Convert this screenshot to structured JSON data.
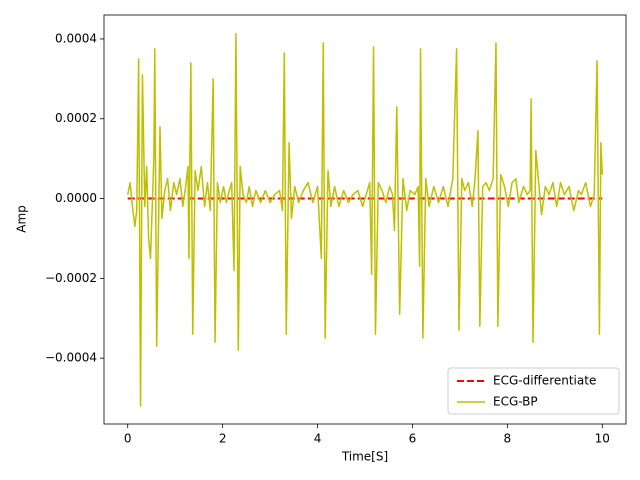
{
  "chart_data": {
    "type": "line",
    "xlabel": "Time[S]",
    "ylabel": "Amp",
    "xlim": [
      -0.5,
      10.5
    ],
    "xticks": [
      0,
      2,
      4,
      6,
      8,
      10
    ],
    "ylim": [
      -0.000565,
      0.00046
    ],
    "yticks": [
      {
        "value": -0.0004,
        "label": "−0.0004"
      },
      {
        "value": -0.0002,
        "label": "−0.0002"
      },
      {
        "value": 0,
        "label": "0.0000"
      },
      {
        "value": 0.0002,
        "label": "0.0002"
      },
      {
        "value": 0.0004,
        "label": "0.0004"
      }
    ],
    "legend": "lower right",
    "series": [
      {
        "name": "ECG-differentiate",
        "color": "#ff0000",
        "style": "dashed",
        "x": [
          0,
          10
        ],
        "values": [
          0,
          0
        ]
      },
      {
        "name": "ECG-BP",
        "color": "#bfbf00",
        "style": "solid",
        "x": [
          0.0,
          0.05,
          0.1,
          0.15,
          0.19,
          0.23,
          0.27,
          0.31,
          0.36,
          0.4,
          0.44,
          0.48,
          0.55,
          0.57,
          0.61,
          0.68,
          0.72,
          0.78,
          0.84,
          0.9,
          0.97,
          1.03,
          1.1,
          1.16,
          1.22,
          1.27,
          1.29,
          1.33,
          1.37,
          1.42,
          1.48,
          1.55,
          1.62,
          1.68,
          1.74,
          1.8,
          1.84,
          1.89,
          1.95,
          2.02,
          2.08,
          2.14,
          2.19,
          2.24,
          2.28,
          2.33,
          2.37,
          2.43,
          2.5,
          2.56,
          2.63,
          2.7,
          2.8,
          2.9,
          3.0,
          3.1,
          3.2,
          3.26,
          3.3,
          3.34,
          3.4,
          3.45,
          3.52,
          3.6,
          3.7,
          3.8,
          3.9,
          4.0,
          4.08,
          4.12,
          4.16,
          4.22,
          4.28,
          4.36,
          4.45,
          4.55,
          4.65,
          4.75,
          4.85,
          4.95,
          5.05,
          5.1,
          5.14,
          5.18,
          5.22,
          5.28,
          5.36,
          5.44,
          5.52,
          5.58,
          5.62,
          5.67,
          5.73,
          5.8,
          5.88,
          5.95,
          6.05,
          6.12,
          6.15,
          6.17,
          6.22,
          6.28,
          6.35,
          6.45,
          6.55,
          6.65,
          6.75,
          6.85,
          6.93,
          6.98,
          7.04,
          7.1,
          7.18,
          7.26,
          7.32,
          7.38,
          7.42,
          7.48,
          7.55,
          7.62,
          7.7,
          7.76,
          7.8,
          7.86,
          7.94,
          8.02,
          8.1,
          8.18,
          8.24,
          8.34,
          8.42,
          8.48,
          8.5,
          8.54,
          8.6,
          8.66,
          8.72,
          8.8,
          8.88,
          8.96,
          9.04,
          9.12,
          9.2,
          9.3,
          9.4,
          9.5,
          9.56,
          9.65,
          9.75,
          9.83,
          9.89,
          9.94,
          9.97,
          10.0
        ],
        "values": [
          1e-05,
          4e-05,
          -2e-05,
          -7e-05,
          -3e-05,
          0.00035,
          -0.00052,
          0.00031,
          -2e-05,
          8e-05,
          -0.0001,
          -0.00015,
          0.0001,
          0.000375,
          -0.00037,
          0.00018,
          -5e-05,
          2e-05,
          5e-05,
          -3e-05,
          4e-05,
          1e-05,
          5e-05,
          -2e-05,
          3e-05,
          8e-05,
          -0.00015,
          0.00034,
          -0.00034,
          7e-05,
          2e-05,
          8e-05,
          -2e-05,
          4e-05,
          -3e-05,
          0.0003,
          -0.00036,
          4e-05,
          -1e-05,
          3e-05,
          -1e-05,
          2e-05,
          4e-05,
          -0.00018,
          0.000413,
          -0.00038,
          8e-05,
          1e-05,
          -1e-05,
          3e-05,
          -2e-05,
          2e-05,
          -1e-05,
          2e-05,
          -1e-05,
          1e-05,
          2e-05,
          -3e-05,
          0.000365,
          -0.00034,
          0.00014,
          -5e-05,
          3e-05,
          -1e-05,
          2e-05,
          4e-05,
          -1e-05,
          3e-05,
          -0.00015,
          0.00039,
          -0.00035,
          7e-05,
          -2e-05,
          3e-05,
          -2e-05,
          2e-05,
          -1e-05,
          1e-05,
          2e-05,
          -2e-05,
          2e-05,
          4e-05,
          -0.00019,
          0.00038,
          -0.00034,
          4e-05,
          2e-05,
          -1e-05,
          3e-05,
          1e-05,
          -8e-05,
          0.00023,
          -0.00029,
          5e-05,
          -3e-05,
          2e-05,
          1e-05,
          3e-05,
          -0.00017,
          0.000375,
          -0.00035,
          5e-05,
          -2e-05,
          3e-05,
          -1e-05,
          3e-05,
          -2e-05,
          5e-05,
          0.000375,
          -0.00033,
          5e-05,
          2e-05,
          4e-05,
          -2e-05,
          5e-05,
          0.00017,
          -0.00032,
          3e-05,
          4e-05,
          2e-05,
          5e-05,
          0.00039,
          -0.00032,
          6e-05,
          3e-05,
          -2e-05,
          4e-05,
          5e-05,
          -1e-05,
          3e-05,
          1e-05,
          2e-05,
          0.00025,
          -0.00036,
          0.00012,
          4e-05,
          -4e-05,
          3e-05,
          1e-05,
          4e-05,
          -2e-05,
          4e-05,
          1e-05,
          3e-05,
          -3e-05,
          2e-05,
          1e-05,
          4e-05,
          -2e-05,
          1e-05,
          0.000345,
          -0.00034,
          0.00014,
          6e-05
        ]
      }
    ]
  }
}
